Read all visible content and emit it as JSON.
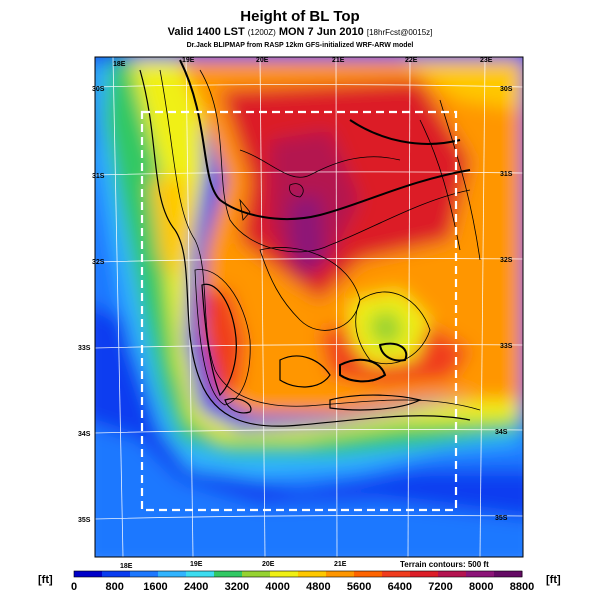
{
  "header": {
    "title": "Height of BL Top",
    "subtitle_main": "Valid 1400 LST",
    "subtitle_small1": "(1200Z)",
    "subtitle_date": "MON 7 Jun 2010",
    "subtitle_small2": "[18hrFcst@0015z]",
    "credit": "Dr.Jack BLIPMAP from RASP 12km GFS-initialized WRF-ARW model"
  },
  "map": {
    "lon_labels_top": [
      "18E",
      "19E",
      "20E",
      "21E",
      "22E",
      "23E"
    ],
    "lon_labels_bottom": [
      "18E",
      "19E",
      "20E",
      "21E"
    ],
    "lat_labels_left": [
      "30S",
      "31S",
      "32S",
      "33S",
      "34S",
      "35S"
    ],
    "lat_labels_right": [
      "30S",
      "31S",
      "32S",
      "33S",
      "34S",
      "35S"
    ],
    "terrain_note": "Terrain contours: 500 ft"
  },
  "colorbar": {
    "unit_left": "[ft]",
    "unit_right": "[ft]",
    "tick_labels": [
      "0",
      "800",
      "1600",
      "2400",
      "3200",
      "4000",
      "4800",
      "5600",
      "6400",
      "7200",
      "8000",
      "8800"
    ],
    "colors": [
      "#0000c8",
      "#0a3cf0",
      "#1e78ff",
      "#32b4ff",
      "#3cdcf0",
      "#32c864",
      "#96d232",
      "#f0f014",
      "#ffc800",
      "#ff9600",
      "#ff6400",
      "#f03c1e",
      "#dc1e28",
      "#b41450",
      "#8c1478",
      "#640a64"
    ]
  }
}
